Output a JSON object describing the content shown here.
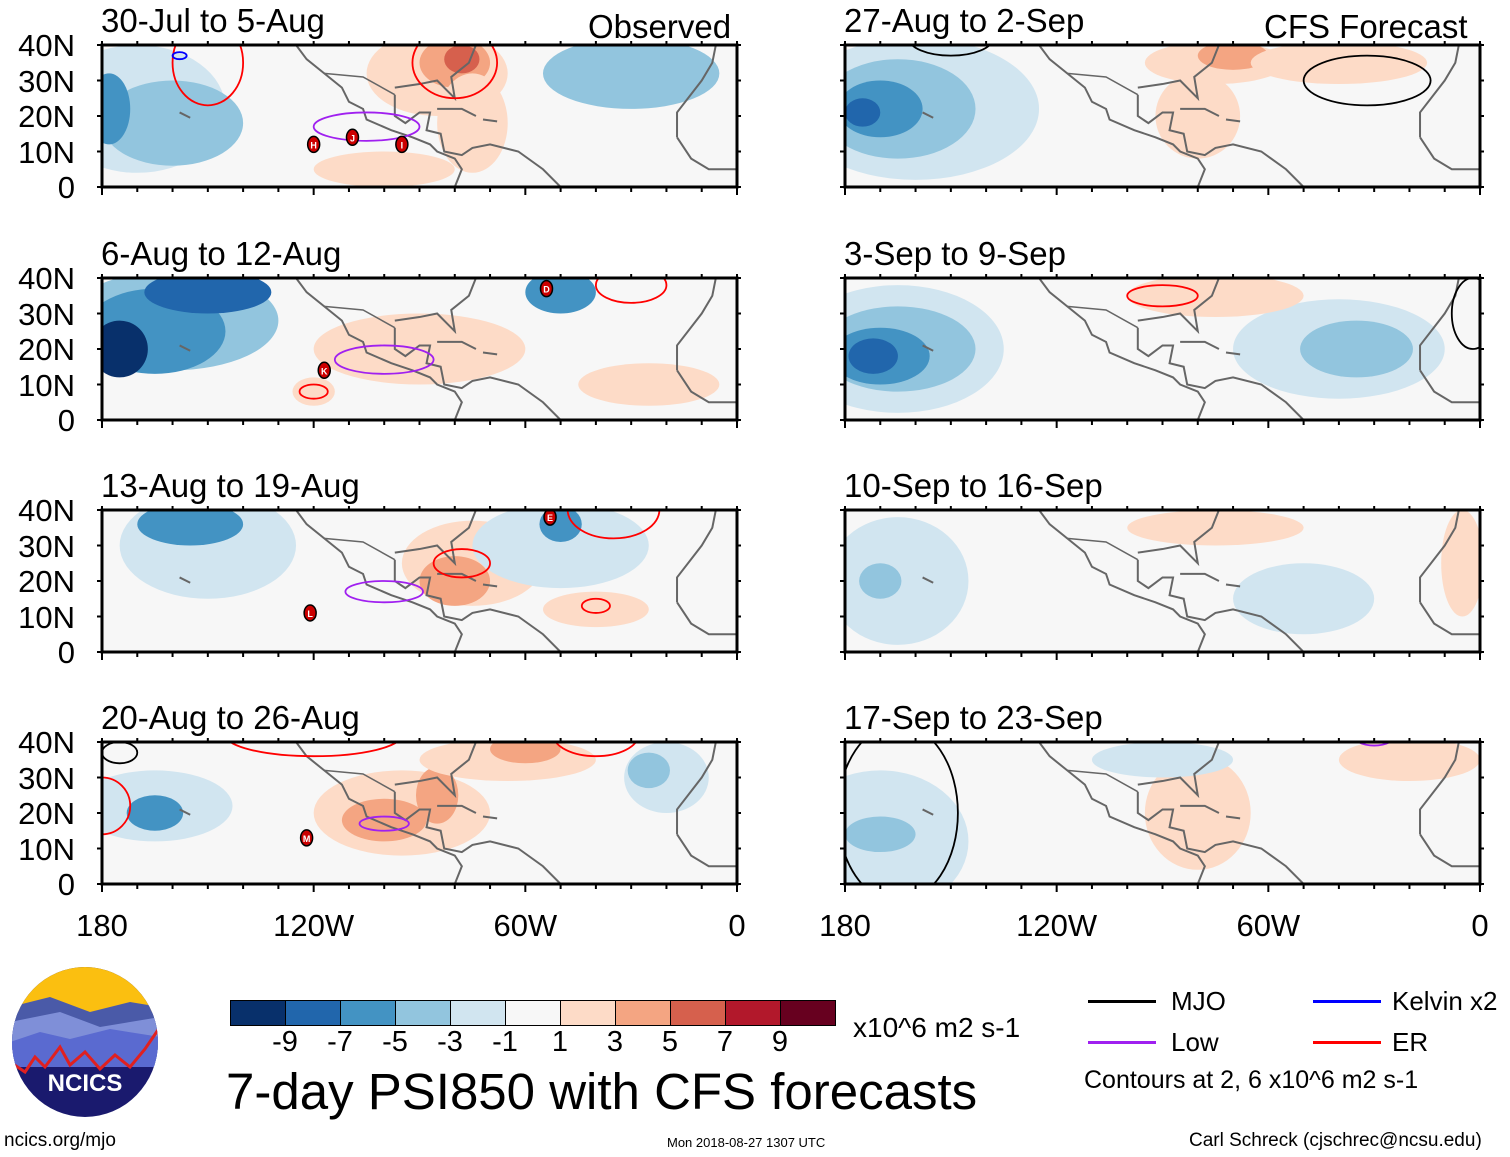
{
  "headers": {
    "observed": "Observed",
    "forecast": "CFS Forecast"
  },
  "panels": [
    {
      "title": "30-Jul to 5-Aug",
      "col": "observed",
      "storms": [
        "H",
        "J",
        "I"
      ]
    },
    {
      "title": "6-Aug to 12-Aug",
      "col": "observed",
      "storms": [
        "D",
        "K"
      ]
    },
    {
      "title": "13-Aug to 19-Aug",
      "col": "observed",
      "storms": [
        "E",
        "L"
      ]
    },
    {
      "title": "20-Aug to 26-Aug",
      "col": "observed",
      "storms": [
        "M"
      ]
    },
    {
      "title": "27-Aug to 2-Sep",
      "col": "forecast",
      "storms": []
    },
    {
      "title": "3-Sep to 9-Sep",
      "col": "forecast",
      "storms": []
    },
    {
      "title": "10-Sep to 16-Sep",
      "col": "forecast",
      "storms": []
    },
    {
      "title": "17-Sep to 23-Sep",
      "col": "forecast",
      "storms": []
    }
  ],
  "y_ticks": [
    "40N",
    "30N",
    "20N",
    "10N",
    "0"
  ],
  "x_ticks": [
    "180",
    "120W",
    "60W",
    "0"
  ],
  "colorbar": {
    "colors": [
      "#08306b",
      "#2166ac",
      "#4393c3",
      "#92c5de",
      "#d1e5f0",
      "#f7f7f7",
      "#fddbc7",
      "#f4a582",
      "#d6604d",
      "#b2182b",
      "#67001f"
    ],
    "labels": [
      "-9",
      "-7",
      "-5",
      "-3",
      "-1",
      "1",
      "3",
      "5",
      "7",
      "9"
    ],
    "units": "x10^6 m2 s-1"
  },
  "title": "7-day PSI850 with CFS forecasts",
  "legend": [
    {
      "label": "MJO",
      "color": "#000000"
    },
    {
      "label": "Kelvin x2",
      "color": "#0000ff"
    },
    {
      "label": "Low",
      "color": "#a020f0"
    },
    {
      "label": "ER",
      "color": "#ff0000"
    }
  ],
  "contours_note": "Contours at 2, 6 x10^6 m2 s-1",
  "logo_text": "NCICS",
  "footer": {
    "left": "ncics.org/mjo",
    "center": "Mon 2018-08-27 1307 UTC",
    "right": "Carl Schreck (cjschrec@ncsu.edu)"
  }
}
